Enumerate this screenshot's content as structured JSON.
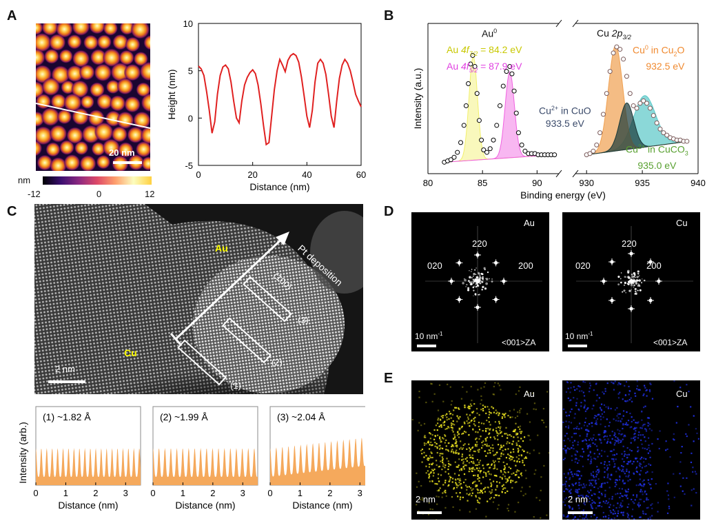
{
  "panel_letters": {
    "a": "A",
    "b": "B",
    "c": "C",
    "d": "D",
    "e": "E"
  },
  "panelA": {
    "scalebar": "20 nm",
    "colorbar_unit": "nm",
    "colorbar_ticks": [
      "-12",
      "0",
      "12"
    ],
    "colors": {
      "profile_line": "#e02020"
    }
  },
  "panelB": {
    "au_title": "Au",
    "au_title_sup": "0",
    "au_peak1": {
      "pre": "Au ",
      "orb": "4f",
      "sub": "7/2",
      "post": " = 84.2 eV",
      "color": "#c8c800"
    },
    "au_peak2": {
      "pre": "Au ",
      "orb": "4f",
      "sub": "5/2",
      "post": " = 87.9 eV",
      "color": "#e040e0"
    },
    "cu_title": {
      "pre": "Cu ",
      "orb": "2p",
      "sub": "3/2"
    },
    "cu0_label": {
      "line1_pre": "Cu",
      "line1_sup": "0",
      "line1_mid": "  in Cu",
      "line1_sub": "2",
      "line1_post": "O",
      "line2": "932.5 eV",
      "color": "#f08a30"
    },
    "cuo_label": {
      "line1_pre": "Cu",
      "line1_sup": "2+",
      "line1_post": " in CuO",
      "line2": "933.5 eV",
      "color": "#3a4a6a"
    },
    "cuco3_label": {
      "line1_pre": "Cu",
      "line1_sup": "2+",
      "line1_mid": " in CuCO",
      "line1_sub": "3",
      "line2": "935.0 eV",
      "color": "#58a030"
    }
  },
  "panelC": {
    "au_label": "Au",
    "cu_label": "Cu",
    "pt_label": "Pt deposition",
    "direction_label": "(100)",
    "box_labels": [
      "(1)",
      "(2)",
      "(3)"
    ],
    "scalebar": "2 nm",
    "label_color": "#ffff00"
  },
  "panelD": {
    "au": {
      "title": "Au",
      "spots": [
        "220",
        "020",
        "200"
      ],
      "scalebar": "10 nm",
      "scalebar_sup": "-1",
      "zone": "<001>ZA"
    },
    "cu": {
      "title": "Cu",
      "spots": [
        "220",
        "020",
        "200"
      ],
      "scalebar": "10 nm",
      "scalebar_sup": "-1",
      "zone": "<001>ZA"
    }
  },
  "panelE": {
    "au": {
      "title": "Au",
      "scalebar": "2 nm",
      "color": "#e8e020"
    },
    "cu": {
      "title": "Cu",
      "scalebar": "2 nm",
      "color": "#2030e0"
    }
  },
  "chart_data": [
    {
      "type": "line",
      "panel": "A",
      "xlabel": "Distance (nm)",
      "ylabel": "Height (nm)",
      "xlim": [
        0,
        60
      ],
      "ylim": [
        -5,
        10
      ],
      "xticks": [
        0,
        20,
        40,
        60
      ],
      "yticks": [
        -5,
        0,
        5,
        10
      ],
      "series": [
        {
          "color": "#e02020",
          "x": [
            0,
            1,
            2,
            3,
            4,
            5,
            6,
            7,
            8,
            9,
            10,
            11,
            12,
            13,
            14,
            15,
            16,
            17,
            18,
            19,
            20,
            21,
            22,
            23,
            24,
            25,
            26,
            27,
            28,
            29,
            30,
            31,
            32,
            33,
            34,
            35,
            36,
            37,
            38,
            39,
            40,
            41,
            42,
            43,
            44,
            45,
            46,
            47,
            48,
            49,
            50,
            51,
            52,
            53,
            54,
            55,
            56,
            57,
            58,
            59,
            60
          ],
          "y": [
            5.5,
            5.2,
            4.5,
            2.8,
            0.8,
            -1.6,
            -0.4,
            2.5,
            4.5,
            5.4,
            5.6,
            5.2,
            3.8,
            1.8,
            0.0,
            -0.5,
            1.8,
            3.5,
            4.3,
            4.8,
            5.1,
            4.7,
            3.5,
            1.5,
            -0.8,
            -2.8,
            -2.6,
            0.2,
            3.0,
            5.0,
            6.2,
            5.6,
            4.9,
            6.1,
            6.6,
            6.8,
            6.6,
            5.9,
            4.3,
            2.3,
            0.2,
            -1.0,
            0.8,
            3.8,
            5.8,
            6.2,
            5.8,
            4.6,
            2.5,
            0.2,
            -1.0,
            1.8,
            4.2,
            5.6,
            6.2,
            5.8,
            5.0,
            3.8,
            2.5,
            1.8,
            1.2
          ]
        }
      ]
    },
    {
      "type": "scatter",
      "panel": "B",
      "xlabel": "Binding energy (eV)",
      "ylabel": "Intensity (a.u.)",
      "broken_axis": true,
      "segments": [
        {
          "xlim": [
            80,
            92
          ],
          "xticks": [
            80,
            85,
            90
          ]
        },
        {
          "xlim": [
            929,
            940
          ],
          "xticks": [
            930,
            935,
            940
          ]
        }
      ],
      "au_data": {
        "x": [
          81.5,
          81.8,
          82.1,
          82.4,
          82.7,
          83.0,
          83.3,
          83.5,
          83.7,
          83.9,
          84.1,
          84.3,
          84.5,
          84.7,
          84.9,
          85.1,
          85.4,
          85.7,
          86.0,
          86.3,
          86.6,
          86.9,
          87.2,
          87.5,
          87.7,
          87.9,
          88.1,
          88.3,
          88.6,
          88.9,
          89.2,
          89.5,
          89.8,
          90.1,
          90.4,
          90.7,
          91.0,
          91.3,
          91.6
        ],
        "y": [
          0.06,
          0.07,
          0.08,
          0.1,
          0.14,
          0.22,
          0.36,
          0.52,
          0.7,
          0.86,
          0.93,
          0.84,
          0.62,
          0.4,
          0.24,
          0.16,
          0.14,
          0.17,
          0.24,
          0.36,
          0.52,
          0.68,
          0.8,
          0.84,
          0.78,
          0.64,
          0.46,
          0.3,
          0.2,
          0.15,
          0.13,
          0.13,
          0.13,
          0.12,
          0.12,
          0.12,
          0.12,
          0.12,
          0.12
        ]
      },
      "cu_data": {
        "x": [
          930.0,
          930.3,
          930.6,
          930.9,
          931.2,
          931.5,
          931.8,
          932.1,
          932.4,
          932.7,
          933.0,
          933.3,
          933.6,
          933.9,
          934.2,
          934.5,
          934.8,
          935.1,
          935.4,
          935.7,
          936.0,
          936.3,
          936.6,
          936.9,
          937.2,
          937.5,
          937.8,
          938.1,
          938.4,
          938.7,
          939.0
        ],
        "y": [
          0.12,
          0.13,
          0.15,
          0.2,
          0.3,
          0.45,
          0.62,
          0.8,
          0.95,
          1.0,
          0.98,
          0.9,
          0.76,
          0.62,
          0.52,
          0.5,
          0.54,
          0.56,
          0.54,
          0.5,
          0.44,
          0.38,
          0.33,
          0.3,
          0.28,
          0.26,
          0.25,
          0.24,
          0.24,
          0.23,
          0.23
        ]
      }
    },
    {
      "type": "area",
      "panel": "C",
      "xlabel": "Distance (nm)",
      "ylabel": "Intensity (arb.)",
      "xlim": [
        0,
        3.5
      ],
      "xticks": [
        0,
        1,
        2,
        3
      ],
      "color": "#f5a95c",
      "profiles": [
        {
          "label": "(1)  ~1.82 Å",
          "period_nm": 0.182
        },
        {
          "label": "(2)  ~1.99 Å",
          "period_nm": 0.199
        },
        {
          "label": "(3)  ~2.04 Å",
          "period_nm": 0.204
        }
      ]
    }
  ]
}
